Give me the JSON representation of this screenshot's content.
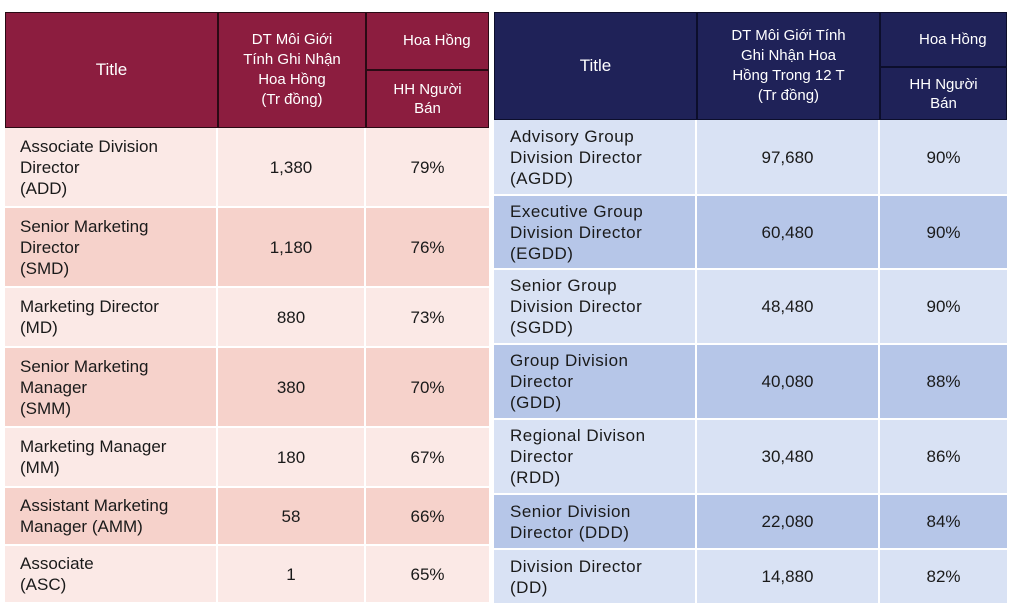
{
  "left_table": {
    "header": {
      "title": "Title",
      "revenue_lines": [
        "DT Môi Giới",
        "Tính Ghi Nhận",
        "Hoa Hồng",
        "(Tr đồng)"
      ],
      "commission_group": "Hoa Hồng",
      "commission_sub_lines": [
        "HH Người",
        "Bán"
      ]
    },
    "rows": [
      {
        "title_lines": [
          "Associate Division",
          "Director",
          "(ADD)"
        ],
        "revenue": "1,380",
        "commission": "79%"
      },
      {
        "title_lines": [
          "Senior Marketing",
          "Director",
          "(SMD)"
        ],
        "revenue": "1,180",
        "commission": "76%"
      },
      {
        "title_lines": [
          "Marketing Director",
          "(MD)"
        ],
        "revenue": "880",
        "commission": "73%"
      },
      {
        "title_lines": [
          "Senior Marketing",
          "Manager",
          "(SMM)"
        ],
        "revenue": "380",
        "commission": "70%"
      },
      {
        "title_lines": [
          "Marketing Manager",
          "(MM)"
        ],
        "revenue": "180",
        "commission": "67%"
      },
      {
        "title_lines": [
          "Assistant Marketing",
          "Manager (AMM)"
        ],
        "revenue": "58",
        "commission": "66%"
      },
      {
        "title_lines": [
          "Associate",
          "(ASC)"
        ],
        "revenue": "1",
        "commission": "65%"
      }
    ]
  },
  "right_table": {
    "header": {
      "title": "Title",
      "revenue_lines": [
        "DT Môi Giới Tính",
        "Ghi Nhận Hoa",
        "Hồng Trong 12 T",
        "(Tr đồng)"
      ],
      "commission_group": "Hoa Hồng",
      "commission_sub_lines": [
        "HH Người",
        "Bán"
      ]
    },
    "rows": [
      {
        "title_lines": [
          "Advisory Group",
          "Division Director",
          "(AGDD)"
        ],
        "revenue": "97,680",
        "commission": "90%"
      },
      {
        "title_lines": [
          "Executive Group",
          "Division Director",
          "(EGDD)"
        ],
        "revenue": "60,480",
        "commission": "90%"
      },
      {
        "title_lines": [
          "Senior Group",
          "Division Director",
          "(SGDD)"
        ],
        "revenue": "48,480",
        "commission": "90%"
      },
      {
        "title_lines": [
          "Group Division",
          "Director",
          "(GDD)"
        ],
        "revenue": "40,080",
        "commission": "88%"
      },
      {
        "title_lines": [
          "Regional Divison",
          "Director",
          "(RDD)"
        ],
        "revenue": "30,480",
        "commission": "86%"
      },
      {
        "title_lines": [
          "Senior Division",
          "Director (DDD)"
        ],
        "revenue": "22,080",
        "commission": "84%"
      },
      {
        "title_lines": [
          "Division Director",
          "(DD)"
        ],
        "revenue": "14,880",
        "commission": "82%"
      }
    ]
  }
}
